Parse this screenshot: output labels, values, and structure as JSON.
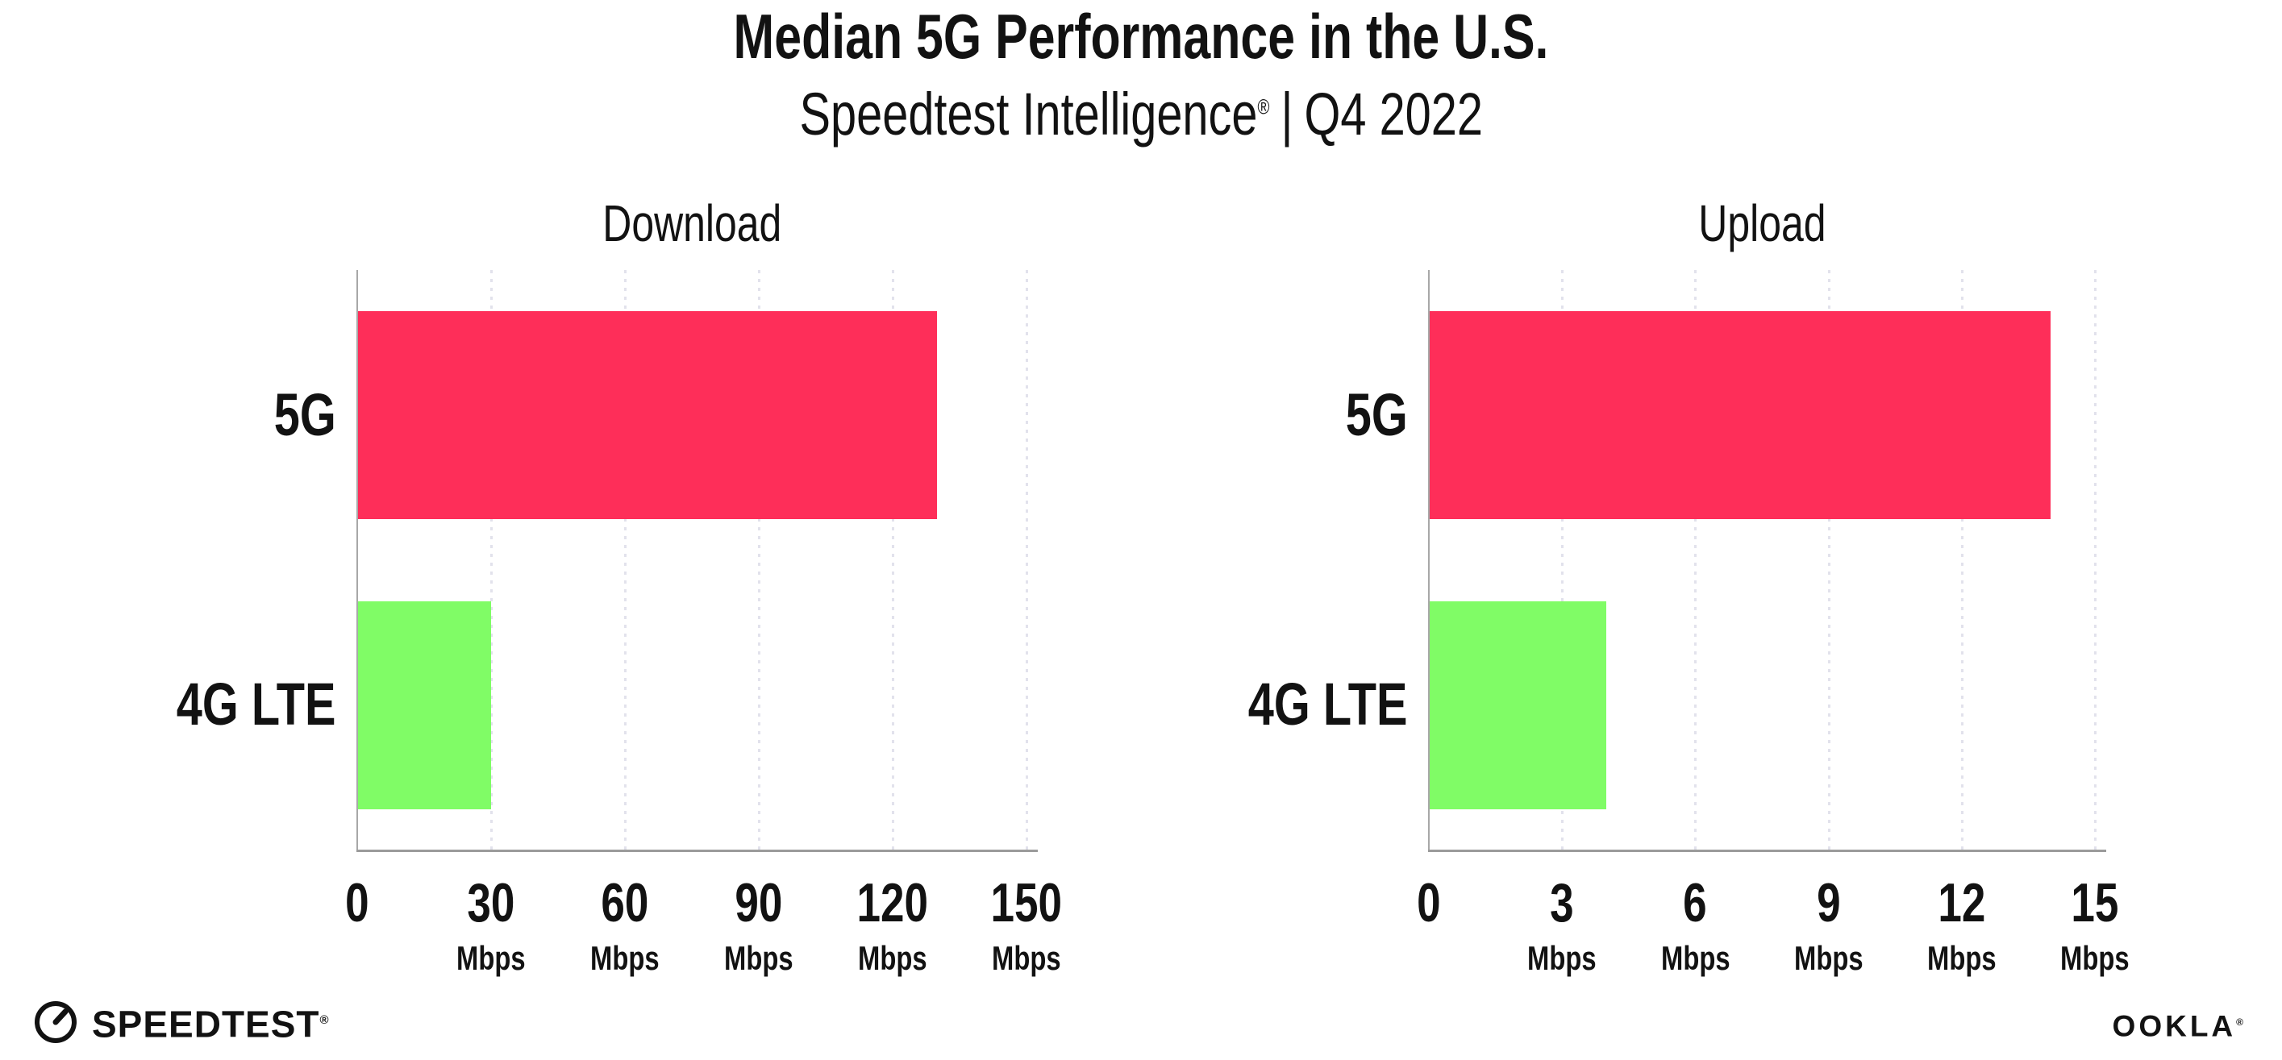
{
  "header": {
    "title": "Median 5G Performance in the U.S.",
    "subtitle_brand": "Speedtest Intelligence",
    "subtitle_reg": "®",
    "subtitle_separator": "|",
    "subtitle_period": "Q4 2022"
  },
  "chart_data": [
    {
      "type": "bar",
      "orientation": "horizontal",
      "title": "Download",
      "categories": [
        "5G",
        "4G LTE"
      ],
      "values": [
        130,
        30
      ],
      "unit": "Mbps",
      "xlim": [
        0,
        150
      ],
      "xticks": [
        0,
        30,
        60,
        90,
        120,
        150
      ],
      "bar_colors": [
        "#fe2e59",
        "#80fc66"
      ],
      "grid": "dotted-vertical-at-ticks",
      "legend": "none"
    },
    {
      "type": "bar",
      "orientation": "horizontal",
      "title": "Upload",
      "categories": [
        "5G",
        "4G LTE"
      ],
      "values": [
        14,
        4
      ],
      "unit": "Mbps",
      "xlim": [
        0,
        15
      ],
      "xticks": [
        0,
        3,
        6,
        9,
        12,
        15
      ],
      "bar_colors": [
        "#fe2e59",
        "#80fc66"
      ],
      "grid": "dotted-vertical-at-ticks",
      "legend": "none"
    }
  ],
  "colors": {
    "bar_5g": "#fe2e59",
    "bar_4g_lte": "#80fc66",
    "axis": "#9b9b9b",
    "gridline": "#e2e2ec",
    "text": "#121212"
  },
  "footer": {
    "speedtest_label": "SPEEDTEST",
    "speedtest_reg": "®",
    "speedtest_icon": "gauge-icon",
    "ookla_label": "OOKLA",
    "ookla_reg": "®"
  }
}
